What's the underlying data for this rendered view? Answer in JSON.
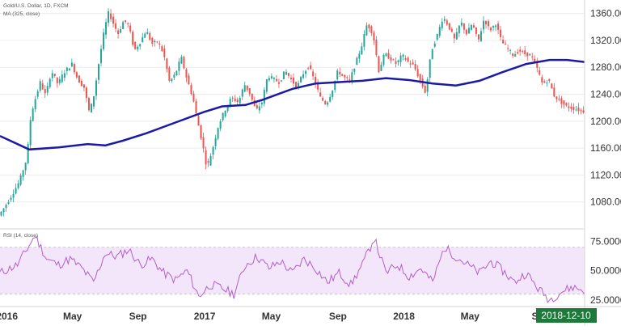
{
  "chart_data": [
    {
      "type": "candlestick",
      "title": "Gold/U.S. Dollar, 1D, FXCM",
      "indicator_label": "MA (325, close)",
      "ylim": [
        1040,
        1380
      ],
      "yticks": [
        "1360.00",
        "1320.00",
        "1280.00",
        "1240.00",
        "1200.00",
        "1160.00",
        "1120.00",
        "1080.00"
      ],
      "xticks": [
        "2016",
        "May",
        "Sep",
        "2017",
        "May",
        "Sep",
        "2018",
        "May",
        "S"
      ],
      "current_date": "2018-12-10",
      "colors": {
        "up": "#26a69a",
        "down": "#ef5350",
        "ma": "#1a1aa6",
        "grid": "#ececec"
      },
      "price_path": [
        {
          "t": 0.0,
          "v": 1060
        },
        {
          "t": 0.008,
          "v": 1070
        },
        {
          "t": 0.022,
          "v": 1090
        },
        {
          "t": 0.035,
          "v": 1110
        },
        {
          "t": 0.048,
          "v": 1145
        },
        {
          "t": 0.055,
          "v": 1210
        },
        {
          "t": 0.063,
          "v": 1235
        },
        {
          "t": 0.071,
          "v": 1258
        },
        {
          "t": 0.08,
          "v": 1238
        },
        {
          "t": 0.09,
          "v": 1275
        },
        {
          "t": 0.101,
          "v": 1255
        },
        {
          "t": 0.111,
          "v": 1272
        },
        {
          "t": 0.125,
          "v": 1285
        },
        {
          "t": 0.135,
          "v": 1262
        },
        {
          "t": 0.146,
          "v": 1250
        },
        {
          "t": 0.155,
          "v": 1212
        },
        {
          "t": 0.163,
          "v": 1240
        },
        {
          "t": 0.172,
          "v": 1292
        },
        {
          "t": 0.181,
          "v": 1338
        },
        {
          "t": 0.188,
          "v": 1362
        },
        {
          "t": 0.196,
          "v": 1345
        },
        {
          "t": 0.204,
          "v": 1330
        },
        {
          "t": 0.214,
          "v": 1350
        },
        {
          "t": 0.222,
          "v": 1342
        },
        {
          "t": 0.232,
          "v": 1305
        },
        {
          "t": 0.242,
          "v": 1318
        },
        {
          "t": 0.252,
          "v": 1335
        },
        {
          "t": 0.262,
          "v": 1315
        },
        {
          "t": 0.272,
          "v": 1318
        },
        {
          "t": 0.282,
          "v": 1300
        },
        {
          "t": 0.292,
          "v": 1258
        },
        {
          "t": 0.302,
          "v": 1270
        },
        {
          "t": 0.312,
          "v": 1295
        },
        {
          "t": 0.322,
          "v": 1262
        },
        {
          "t": 0.332,
          "v": 1235
        },
        {
          "t": 0.34,
          "v": 1200
        },
        {
          "t": 0.348,
          "v": 1168
        },
        {
          "t": 0.356,
          "v": 1130
        },
        {
          "t": 0.366,
          "v": 1160
        },
        {
          "t": 0.376,
          "v": 1195
        },
        {
          "t": 0.386,
          "v": 1215
        },
        {
          "t": 0.398,
          "v": 1235
        },
        {
          "t": 0.41,
          "v": 1228
        },
        {
          "t": 0.42,
          "v": 1255
        },
        {
          "t": 0.43,
          "v": 1240
        },
        {
          "t": 0.44,
          "v": 1215
        },
        {
          "t": 0.45,
          "v": 1228
        },
        {
          "t": 0.46,
          "v": 1268
        },
        {
          "t": 0.47,
          "v": 1262
        },
        {
          "t": 0.48,
          "v": 1258
        },
        {
          "t": 0.49,
          "v": 1275
        },
        {
          "t": 0.5,
          "v": 1262
        },
        {
          "t": 0.51,
          "v": 1250
        },
        {
          "t": 0.52,
          "v": 1270
        },
        {
          "t": 0.53,
          "v": 1282
        },
        {
          "t": 0.54,
          "v": 1260
        },
        {
          "t": 0.55,
          "v": 1235
        },
        {
          "t": 0.56,
          "v": 1225
        },
        {
          "t": 0.57,
          "v": 1245
        },
        {
          "t": 0.58,
          "v": 1275
        },
        {
          "t": 0.59,
          "v": 1265
        },
        {
          "t": 0.6,
          "v": 1260
        },
        {
          "t": 0.61,
          "v": 1285
        },
        {
          "t": 0.62,
          "v": 1310
        },
        {
          "t": 0.63,
          "v": 1345
        },
        {
          "t": 0.64,
          "v": 1330
        },
        {
          "t": 0.65,
          "v": 1275
        },
        {
          "t": 0.66,
          "v": 1300
        },
        {
          "t": 0.67,
          "v": 1293
        },
        {
          "t": 0.68,
          "v": 1285
        },
        {
          "t": 0.69,
          "v": 1298
        },
        {
          "t": 0.7,
          "v": 1288
        },
        {
          "t": 0.71,
          "v": 1282
        },
        {
          "t": 0.72,
          "v": 1262
        },
        {
          "t": 0.73,
          "v": 1242
        },
        {
          "t": 0.74,
          "v": 1305
        },
        {
          "t": 0.75,
          "v": 1328
        },
        {
          "t": 0.76,
          "v": 1355
        },
        {
          "t": 0.77,
          "v": 1340
        },
        {
          "t": 0.78,
          "v": 1320
        },
        {
          "t": 0.79,
          "v": 1348
        },
        {
          "t": 0.8,
          "v": 1330
        },
        {
          "t": 0.81,
          "v": 1345
        },
        {
          "t": 0.82,
          "v": 1318
        },
        {
          "t": 0.83,
          "v": 1352
        },
        {
          "t": 0.84,
          "v": 1335
        },
        {
          "t": 0.85,
          "v": 1345
        },
        {
          "t": 0.86,
          "v": 1318
        },
        {
          "t": 0.87,
          "v": 1308
        },
        {
          "t": 0.88,
          "v": 1298
        },
        {
          "t": 0.89,
          "v": 1305
        },
        {
          "t": 0.9,
          "v": 1300
        },
        {
          "t": 0.91,
          "v": 1298
        },
        {
          "t": 0.92,
          "v": 1280
        },
        {
          "t": 0.93,
          "v": 1255
        },
        {
          "t": 0.94,
          "v": 1262
        },
        {
          "t": 0.95,
          "v": 1238
        },
        {
          "t": 0.96,
          "v": 1230
        },
        {
          "t": 0.97,
          "v": 1222
        },
        {
          "t": 1.0,
          "v": 1215
        }
      ],
      "ma_path": [
        {
          "t": 0.0,
          "v": 1178
        },
        {
          "t": 0.05,
          "v": 1158
        },
        {
          "t": 0.1,
          "v": 1161
        },
        {
          "t": 0.15,
          "v": 1166
        },
        {
          "t": 0.18,
          "v": 1164
        },
        {
          "t": 0.21,
          "v": 1171
        },
        {
          "t": 0.25,
          "v": 1182
        },
        {
          "t": 0.3,
          "v": 1198
        },
        {
          "t": 0.35,
          "v": 1214
        },
        {
          "t": 0.38,
          "v": 1222
        },
        {
          "t": 0.42,
          "v": 1224
        },
        {
          "t": 0.45,
          "v": 1232
        },
        {
          "t": 0.5,
          "v": 1248
        },
        {
          "t": 0.54,
          "v": 1256
        },
        {
          "t": 0.58,
          "v": 1258
        },
        {
          "t": 0.62,
          "v": 1260
        },
        {
          "t": 0.66,
          "v": 1264
        },
        {
          "t": 0.7,
          "v": 1261
        },
        {
          "t": 0.74,
          "v": 1256
        },
        {
          "t": 0.78,
          "v": 1253
        },
        {
          "t": 0.82,
          "v": 1260
        },
        {
          "t": 0.86,
          "v": 1273
        },
        {
          "t": 0.9,
          "v": 1285
        },
        {
          "t": 0.94,
          "v": 1291
        },
        {
          "t": 0.97,
          "v": 1291
        },
        {
          "t": 1.0,
          "v": 1288
        }
      ]
    },
    {
      "type": "line",
      "title": "RSI (14, close)",
      "ylim": [
        20,
        85
      ],
      "yticks": [
        "75.0000",
        "50.0000",
        "25.0000"
      ],
      "band": [
        30,
        70
      ],
      "colors": {
        "line": "#b060c8",
        "band": "#f3e6fa"
      },
      "rsi_path": [
        {
          "t": 0.0,
          "v": 48
        },
        {
          "t": 0.03,
          "v": 55
        },
        {
          "t": 0.06,
          "v": 80
        },
        {
          "t": 0.08,
          "v": 60
        },
        {
          "t": 0.1,
          "v": 55
        },
        {
          "t": 0.12,
          "v": 60
        },
        {
          "t": 0.14,
          "v": 52
        },
        {
          "t": 0.16,
          "v": 40
        },
        {
          "t": 0.18,
          "v": 65
        },
        {
          "t": 0.2,
          "v": 62
        },
        {
          "t": 0.22,
          "v": 68
        },
        {
          "t": 0.24,
          "v": 55
        },
        {
          "t": 0.26,
          "v": 60
        },
        {
          "t": 0.28,
          "v": 48
        },
        {
          "t": 0.3,
          "v": 42
        },
        {
          "t": 0.32,
          "v": 50
        },
        {
          "t": 0.34,
          "v": 28
        },
        {
          "t": 0.36,
          "v": 38
        },
        {
          "t": 0.38,
          "v": 35
        },
        {
          "t": 0.4,
          "v": 30
        },
        {
          "t": 0.42,
          "v": 55
        },
        {
          "t": 0.44,
          "v": 62
        },
        {
          "t": 0.46,
          "v": 52
        },
        {
          "t": 0.48,
          "v": 58
        },
        {
          "t": 0.5,
          "v": 48
        },
        {
          "t": 0.52,
          "v": 60
        },
        {
          "t": 0.54,
          "v": 52
        },
        {
          "t": 0.56,
          "v": 40
        },
        {
          "t": 0.58,
          "v": 48
        },
        {
          "t": 0.6,
          "v": 38
        },
        {
          "t": 0.62,
          "v": 55
        },
        {
          "t": 0.64,
          "v": 78
        },
        {
          "t": 0.66,
          "v": 48
        },
        {
          "t": 0.68,
          "v": 55
        },
        {
          "t": 0.7,
          "v": 45
        },
        {
          "t": 0.72,
          "v": 52
        },
        {
          "t": 0.74,
          "v": 40
        },
        {
          "t": 0.76,
          "v": 70
        },
        {
          "t": 0.78,
          "v": 62
        },
        {
          "t": 0.8,
          "v": 55
        },
        {
          "t": 0.82,
          "v": 48
        },
        {
          "t": 0.84,
          "v": 58
        },
        {
          "t": 0.86,
          "v": 50
        },
        {
          "t": 0.88,
          "v": 40
        },
        {
          "t": 0.9,
          "v": 48
        },
        {
          "t": 0.92,
          "v": 35
        },
        {
          "t": 0.94,
          "v": 25
        },
        {
          "t": 0.96,
          "v": 32
        },
        {
          "t": 0.98,
          "v": 36
        },
        {
          "t": 1.0,
          "v": 33
        }
      ]
    }
  ]
}
